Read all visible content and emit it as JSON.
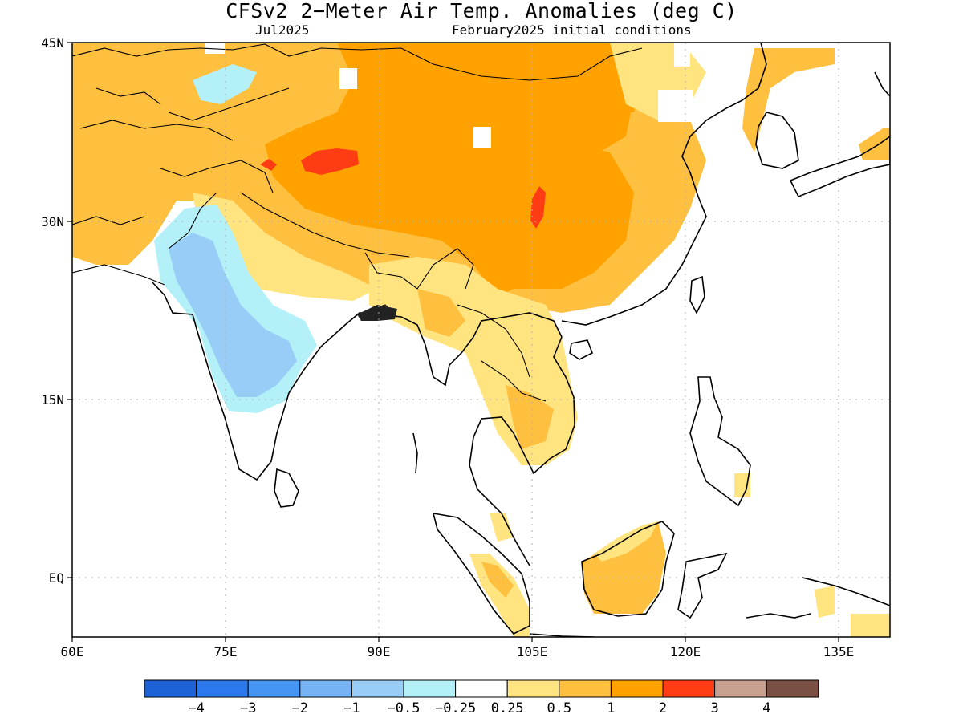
{
  "title": "CFSv2 2−Meter Air Temp. Anomalies (deg C)",
  "subtitle_left": "Jul2025",
  "subtitle_right": "February2025 initial conditions",
  "map": {
    "lon_range": [
      60,
      140
    ],
    "lat_range": [
      -5,
      45
    ],
    "x_ticks": [
      "60E",
      "75E",
      "90E",
      "105E",
      "120E",
      "135E"
    ],
    "y_ticks": [
      "45N",
      "30N",
      "15N",
      "EQ"
    ],
    "gridlines": "dotted"
  },
  "colorbar": {
    "colors": [
      "#1c62d6",
      "#2a78ec",
      "#4596f2",
      "#75b3f4",
      "#98cdf8",
      "#b3f0f8",
      "#ffffff",
      "#ffe480",
      "#ffc040",
      "#ffa200",
      "#ff3c14",
      "#c8a090",
      "#7a5044"
    ],
    "labels": [
      "−4",
      "−3",
      "−2",
      "−1",
      "−0.5",
      "−0.25",
      "0.25",
      "0.5",
      "1",
      "2",
      "3",
      "4"
    ]
  },
  "palette": {
    "orange": "#ffa200",
    "light_orange": "#ffc040",
    "yellow": "#ffe480",
    "red": "#ff3c14",
    "light_blue": "#b3f0f8",
    "blue": "#98cdf8",
    "mid_blue": "#75b3f4"
  }
}
